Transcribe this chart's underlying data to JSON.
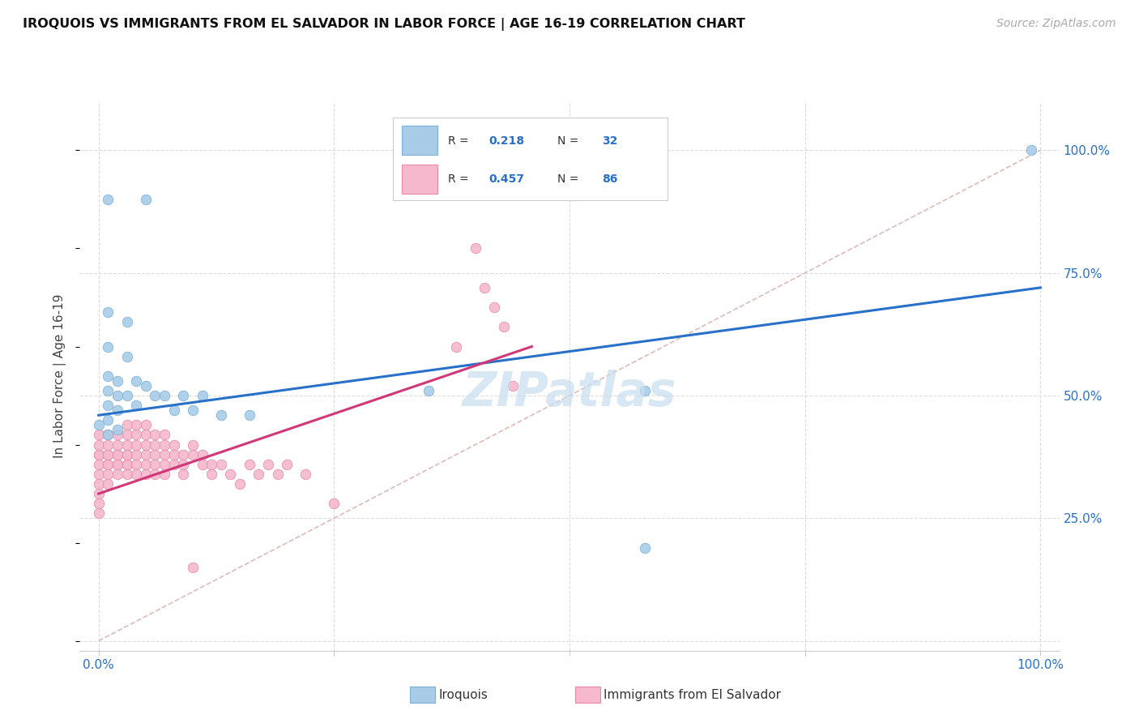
{
  "title": "IROQUOIS VS IMMIGRANTS FROM EL SALVADOR IN LABOR FORCE | AGE 16-19 CORRELATION CHART",
  "source": "Source: ZipAtlas.com",
  "ylabel": "In Labor Force | Age 16-19",
  "xlim": [
    -0.02,
    1.02
  ],
  "ylim": [
    -0.02,
    1.1
  ],
  "xticks": [
    0.0,
    0.25,
    0.5,
    0.75,
    1.0
  ],
  "xtick_labels": [
    "0.0%",
    "",
    "",
    "",
    "100.0%"
  ],
  "yticks": [
    0.0,
    0.25,
    0.5,
    0.75,
    1.0
  ],
  "ytick_right_labels": [
    "",
    "25.0%",
    "50.0%",
    "75.0%",
    "100.0%"
  ],
  "iroquois_color": "#a8cce8",
  "iroquois_edge": "#7bafd4",
  "salvador_color": "#f5b8cc",
  "salvador_edge": "#e888aa",
  "regression_blue": "#2870c8",
  "regression_pink": "#d03878",
  "diagonal_color": "#ddbbbb",
  "background_color": "#ffffff",
  "grid_color": "#dddddd",
  "title_color": "#111111",
  "source_color": "#aaaaaa",
  "tick_color_right": "#2870c8",
  "tick_color_bottom": "#888888",
  "legend_box_color": "#f0f0f8",
  "legend_r_color": "#2870c8",
  "legend_n_color": "#2870c8",
  "watermark_color": "#c8ddf0",
  "iroquois_points": [
    [
      0.01,
      0.9
    ],
    [
      0.05,
      0.9
    ],
    [
      0.01,
      0.67
    ],
    [
      0.03,
      0.65
    ],
    [
      0.01,
      0.6
    ],
    [
      0.03,
      0.58
    ],
    [
      0.01,
      0.54
    ],
    [
      0.02,
      0.53
    ],
    [
      0.01,
      0.51
    ],
    [
      0.02,
      0.5
    ],
    [
      0.01,
      0.48
    ],
    [
      0.02,
      0.47
    ],
    [
      0.01,
      0.45
    ],
    [
      0.0,
      0.44
    ],
    [
      0.01,
      0.42
    ],
    [
      0.02,
      0.43
    ],
    [
      0.03,
      0.5
    ],
    [
      0.04,
      0.48
    ],
    [
      0.04,
      0.53
    ],
    [
      0.05,
      0.52
    ],
    [
      0.06,
      0.5
    ],
    [
      0.07,
      0.5
    ],
    [
      0.08,
      0.47
    ],
    [
      0.09,
      0.5
    ],
    [
      0.1,
      0.47
    ],
    [
      0.11,
      0.5
    ],
    [
      0.13,
      0.46
    ],
    [
      0.16,
      0.46
    ],
    [
      0.35,
      0.51
    ],
    [
      0.58,
      0.19
    ],
    [
      0.58,
      0.51
    ],
    [
      0.99,
      1.0
    ]
  ],
  "salvador_points": [
    [
      0.0,
      0.38
    ],
    [
      0.0,
      0.36
    ],
    [
      0.0,
      0.34
    ],
    [
      0.0,
      0.32
    ],
    [
      0.0,
      0.4
    ],
    [
      0.0,
      0.42
    ],
    [
      0.0,
      0.38
    ],
    [
      0.0,
      0.3
    ],
    [
      0.0,
      0.28
    ],
    [
      0.0,
      0.26
    ],
    [
      0.01,
      0.38
    ],
    [
      0.01,
      0.36
    ],
    [
      0.01,
      0.34
    ],
    [
      0.01,
      0.32
    ],
    [
      0.01,
      0.4
    ],
    [
      0.01,
      0.42
    ],
    [
      0.01,
      0.38
    ],
    [
      0.01,
      0.36
    ],
    [
      0.02,
      0.36
    ],
    [
      0.02,
      0.38
    ],
    [
      0.02,
      0.4
    ],
    [
      0.02,
      0.34
    ],
    [
      0.02,
      0.42
    ],
    [
      0.02,
      0.38
    ],
    [
      0.02,
      0.36
    ],
    [
      0.03,
      0.38
    ],
    [
      0.03,
      0.36
    ],
    [
      0.03,
      0.34
    ],
    [
      0.03,
      0.4
    ],
    [
      0.03,
      0.42
    ],
    [
      0.03,
      0.44
    ],
    [
      0.03,
      0.38
    ],
    [
      0.03,
      0.36
    ],
    [
      0.04,
      0.38
    ],
    [
      0.04,
      0.4
    ],
    [
      0.04,
      0.42
    ],
    [
      0.04,
      0.36
    ],
    [
      0.04,
      0.34
    ],
    [
      0.04,
      0.44
    ],
    [
      0.05,
      0.38
    ],
    [
      0.05,
      0.4
    ],
    [
      0.05,
      0.42
    ],
    [
      0.05,
      0.36
    ],
    [
      0.05,
      0.44
    ],
    [
      0.05,
      0.34
    ],
    [
      0.06,
      0.38
    ],
    [
      0.06,
      0.4
    ],
    [
      0.06,
      0.36
    ],
    [
      0.06,
      0.42
    ],
    [
      0.06,
      0.34
    ],
    [
      0.07,
      0.38
    ],
    [
      0.07,
      0.4
    ],
    [
      0.07,
      0.36
    ],
    [
      0.07,
      0.34
    ],
    [
      0.07,
      0.42
    ],
    [
      0.08,
      0.38
    ],
    [
      0.08,
      0.4
    ],
    [
      0.08,
      0.36
    ],
    [
      0.09,
      0.38
    ],
    [
      0.09,
      0.36
    ],
    [
      0.09,
      0.34
    ],
    [
      0.1,
      0.38
    ],
    [
      0.1,
      0.4
    ],
    [
      0.11,
      0.36
    ],
    [
      0.11,
      0.38
    ],
    [
      0.12,
      0.36
    ],
    [
      0.12,
      0.34
    ],
    [
      0.13,
      0.36
    ],
    [
      0.14,
      0.34
    ],
    [
      0.15,
      0.32
    ],
    [
      0.16,
      0.36
    ],
    [
      0.17,
      0.34
    ],
    [
      0.18,
      0.36
    ],
    [
      0.19,
      0.34
    ],
    [
      0.2,
      0.36
    ],
    [
      0.22,
      0.34
    ],
    [
      0.25,
      0.28
    ],
    [
      0.38,
      0.6
    ],
    [
      0.1,
      0.15
    ],
    [
      0.4,
      0.8
    ],
    [
      0.41,
      0.72
    ],
    [
      0.42,
      0.68
    ],
    [
      0.43,
      0.64
    ],
    [
      0.44,
      0.52
    ]
  ],
  "blue_line": {
    "x0": 0.0,
    "y0": 0.46,
    "x1": 1.0,
    "y1": 0.72
  },
  "pink_line": {
    "x0": 0.0,
    "y0": 0.3,
    "x1": 0.46,
    "y1": 0.6
  },
  "marker_size": 9,
  "figsize": [
    14.06,
    8.92
  ],
  "dpi": 100
}
